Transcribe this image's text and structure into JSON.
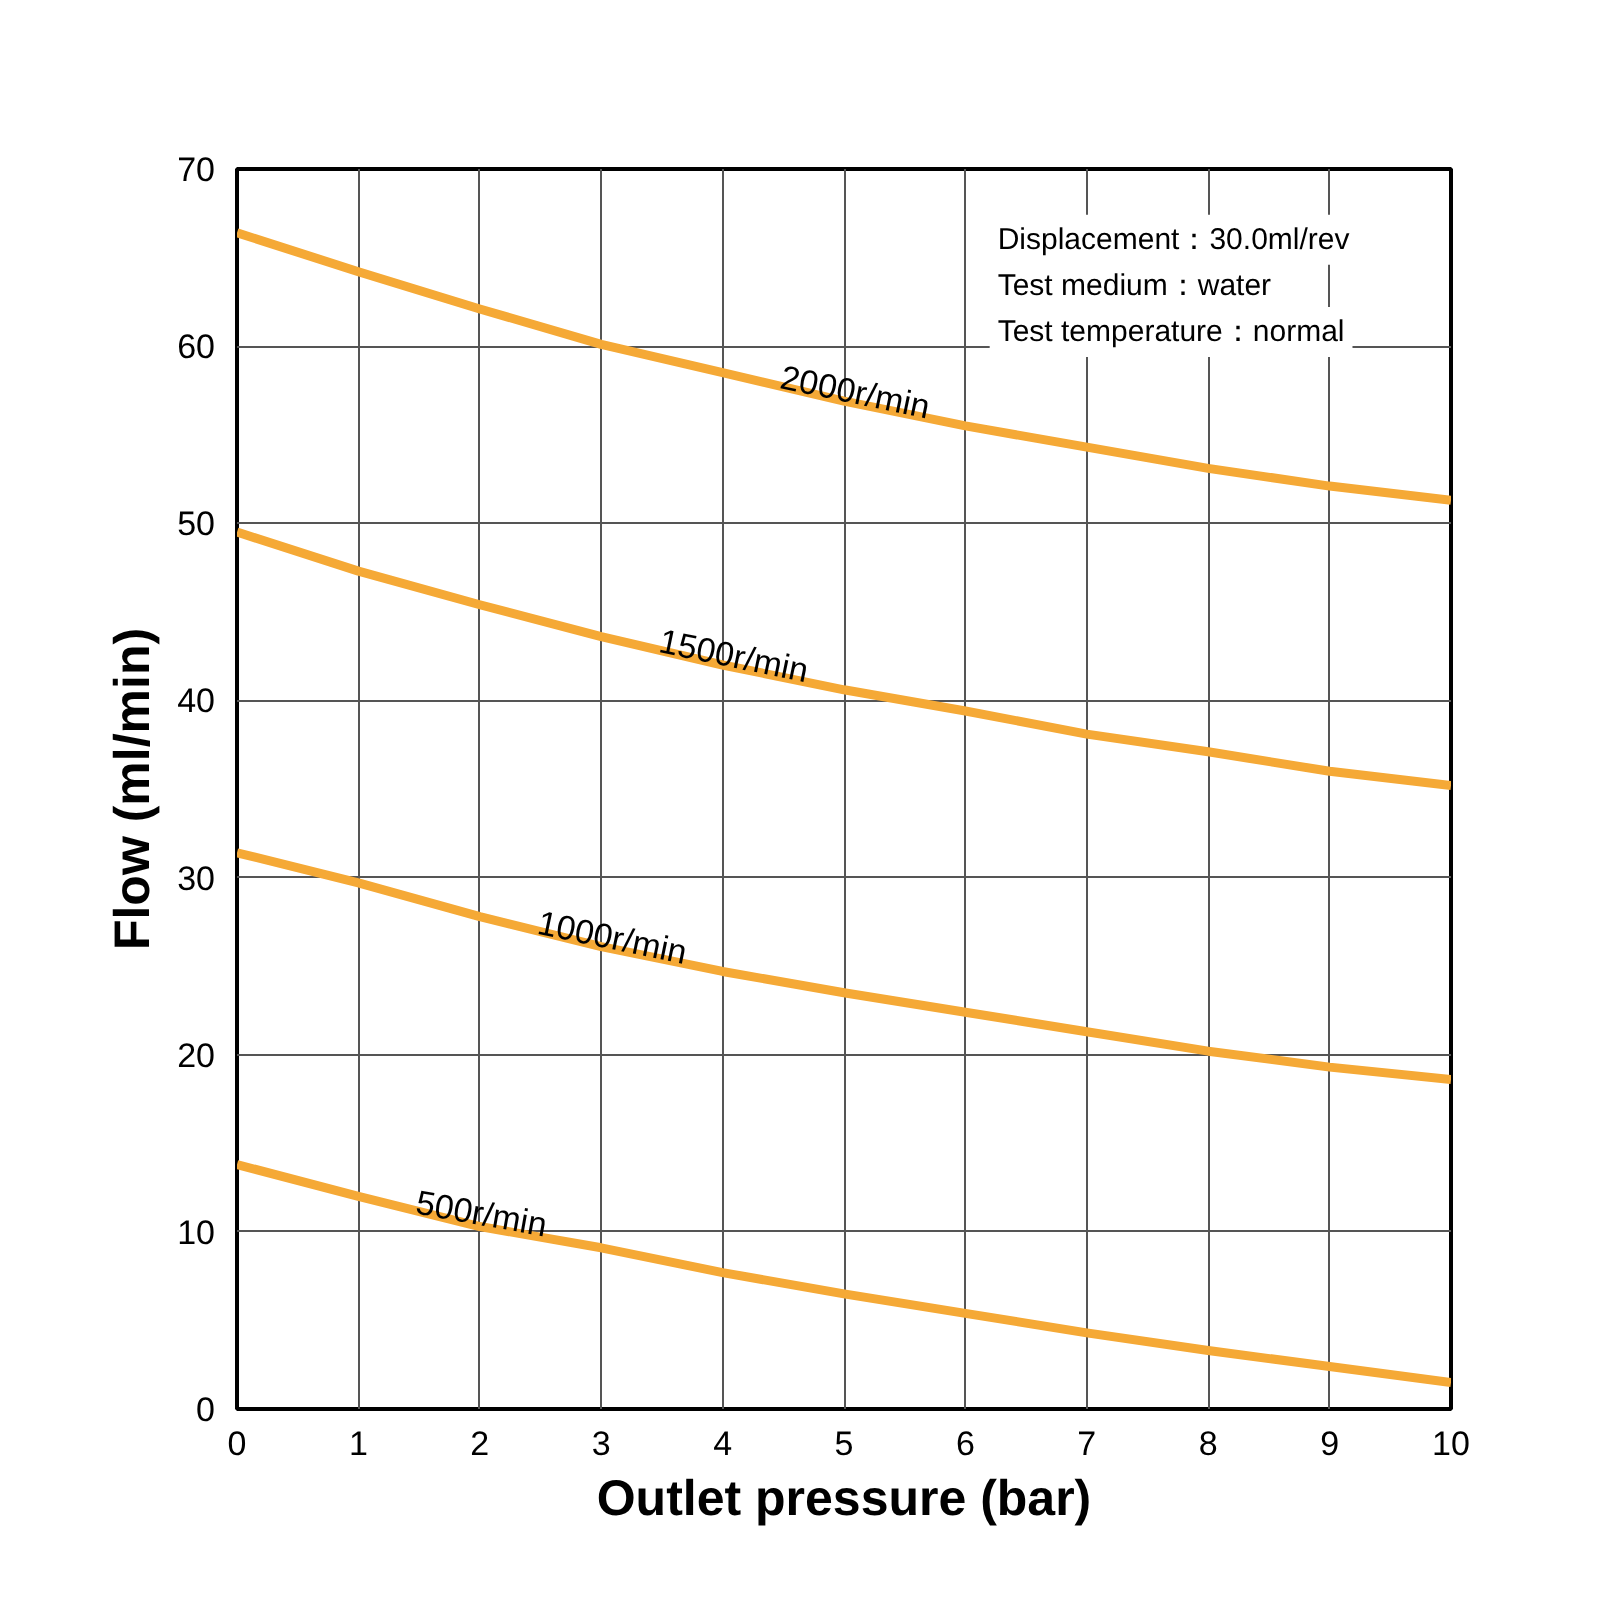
{
  "chart_data": {
    "type": "line",
    "xlabel": "Outlet pressure (bar)",
    "ylabel": "Flow (ml/min)",
    "x": [
      0,
      1,
      2,
      3,
      4,
      5,
      6,
      7,
      8,
      9,
      10
    ],
    "series": [
      {
        "name": "2000r/min",
        "color": "#f5a936",
        "values": [
          66.4,
          64.2,
          62.1,
          60.1,
          58.5,
          56.9,
          55.5,
          54.3,
          53.1,
          52.1,
          51.3
        ]
      },
      {
        "name": "1500r/min",
        "color": "#f5a936",
        "values": [
          49.5,
          47.3,
          45.4,
          43.6,
          42.0,
          40.6,
          39.4,
          38.1,
          37.1,
          36.0,
          35.2
        ]
      },
      {
        "name": "1000r/min",
        "color": "#f5a936",
        "values": [
          31.4,
          29.7,
          27.8,
          26.1,
          24.7,
          23.5,
          22.4,
          21.3,
          20.2,
          19.3,
          18.6
        ]
      },
      {
        "name": "500r/min",
        "color": "#f5a936",
        "values": [
          13.8,
          12.0,
          10.3,
          9.1,
          7.7,
          6.5,
          5.4,
          4.3,
          3.3,
          2.4,
          1.5
        ]
      }
    ],
    "annotations": [
      "Displacement：30.0ml/rev",
      "Test medium：water",
      "Test temperature：normal"
    ],
    "xlim": [
      0,
      10
    ],
    "ylim": [
      0,
      70
    ],
    "xticks": [
      0,
      1,
      2,
      3,
      4,
      5,
      6,
      7,
      8,
      9,
      10
    ],
    "yticks": [
      0,
      10,
      20,
      30,
      40,
      50,
      60,
      70
    ],
    "grid": true,
    "marker": "none",
    "line_style": "solid"
  }
}
